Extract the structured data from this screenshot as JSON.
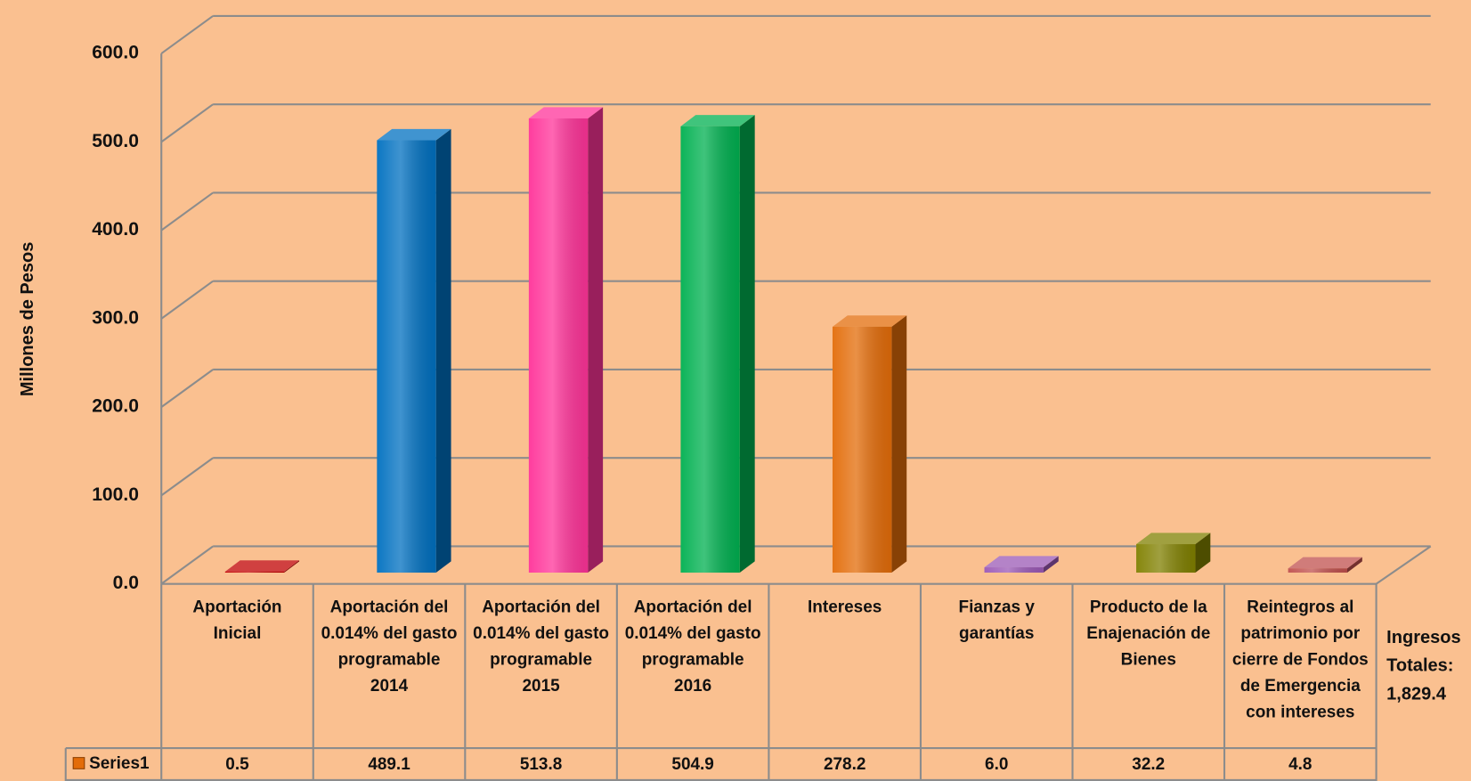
{
  "chart_data": {
    "type": "bar3d",
    "y_label": "Millones de Pesos",
    "categories": [
      "Aportación Inicial",
      "Aportación del 0.014% del gasto programable 2014",
      "Aportación del 0.014% del gasto programable 2015",
      "Aportación del 0.014% del gasto programable 2016",
      "Intereses",
      "Fianzas y garantías",
      "Producto de la Enajenación de Bienes",
      "Reintegros al patrimonio por cierre de Fondos de Emergencia con intereses"
    ],
    "series": [
      {
        "name": "Series1",
        "colors": [
          "#c00000",
          "#0070c0",
          "#ff3399",
          "#00b050",
          "#e36c09",
          "#9b59b6",
          "#808000",
          "#c0504d"
        ],
        "values": [
          0.5,
          489.1,
          513.8,
          504.9,
          278.2,
          6.0,
          32.2,
          4.8
        ],
        "value_labels": [
          "0.5",
          "489.1",
          "513.8",
          "504.9",
          "278.2",
          "6.0",
          "32.2",
          "4.8"
        ]
      }
    ],
    "ylim": [
      0,
      600
    ],
    "yticks": [
      {
        "value": 0,
        "label": "0.0"
      },
      {
        "value": 100,
        "label": "100.0"
      },
      {
        "value": 200,
        "label": "200.0"
      },
      {
        "value": 300,
        "label": "300.0"
      },
      {
        "value": 400,
        "label": "400.0"
      },
      {
        "value": 500,
        "label": "500.0"
      },
      {
        "value": 600,
        "label": "600.0"
      }
    ],
    "grid": true,
    "annotation": "Ingresos Totales: 1,829.4"
  }
}
